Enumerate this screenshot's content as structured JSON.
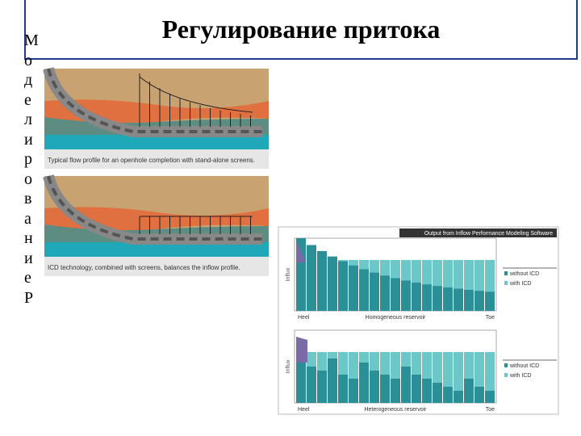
{
  "title": "Регулирование притока",
  "side_text": "Моделирование Р",
  "figures": [
    {
      "caption": "Typical flow profile for an openhole completion with stand-alone screens."
    },
    {
      "caption": "ICD technology, combined with screens, balances the inflow profile."
    }
  ],
  "chart": {
    "header": "Output from Inflow Performance Modeling Software",
    "panels": [
      {
        "axis_label": "Influx",
        "x_labels": [
          "Heel",
          "Homogeneous reservoir",
          "Toe"
        ],
        "legend": [
          "without ICD",
          "with ICD"
        ]
      },
      {
        "axis_label": "Influx",
        "x_labels": [
          "Heel",
          "Heterogeneous reservoir",
          "Toe"
        ],
        "legend": [
          "without ICD",
          "with ICD"
        ]
      }
    ]
  }
}
